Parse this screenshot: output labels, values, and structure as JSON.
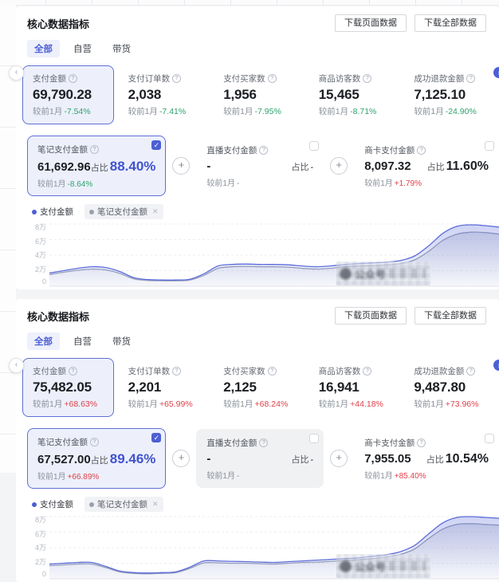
{
  "colors": {
    "accent": "#4c5fd5",
    "up_red": "#e0414b",
    "down_green": "#2ea36f",
    "line_main": "#5b6cd9",
    "line_secondary": "#99a0b8",
    "selected_card_bg": "#edf0fb"
  },
  "panels": [
    {
      "title": "核心数据指标",
      "buttons": {
        "download_page": "下载页面数据",
        "download_all": "下载全部数据"
      },
      "tabs": [
        {
          "label": "全部",
          "active": true
        },
        {
          "label": "自营",
          "active": false
        },
        {
          "label": "带货",
          "active": false
        }
      ],
      "compare_prefix": "较前1月",
      "metrics": [
        {
          "label": "支付金额",
          "value": "69,790.28",
          "change": "-7.54%",
          "dir": "down",
          "selected": true
        },
        {
          "label": "支付订单数",
          "value": "2,038",
          "change": "-7.41%",
          "dir": "down",
          "selected": false
        },
        {
          "label": "支付买家数",
          "value": "1,956",
          "change": "-7.95%",
          "dir": "down",
          "selected": false
        },
        {
          "label": "商品访客数",
          "value": "15,465",
          "change": "-8.71%",
          "dir": "down",
          "selected": false
        },
        {
          "label": "成功退款金额",
          "value": "7,125.10",
          "change": "-24.90%",
          "dir": "down",
          "selected": false
        }
      ],
      "subcards": [
        {
          "label": "笔记支付金额",
          "value": "61,692.96",
          "ratio_label": "占比",
          "ratio": "88.40%",
          "change": "-8.64%",
          "dir": "down",
          "checked": true,
          "muted": false
        },
        {
          "label": "直播支付金额",
          "value": "-",
          "ratio_label": "占比",
          "ratio": "-",
          "change": "-",
          "dir": "none",
          "checked": false,
          "muted": false
        },
        {
          "label": "商卡支付金额",
          "value": "8,097.32",
          "ratio_label": "占比",
          "ratio": "11.60%",
          "change": "+1.79%",
          "dir": "up",
          "checked": false,
          "muted": false
        }
      ],
      "legend": [
        {
          "label": "支付金额",
          "color": "#4c5fd5"
        },
        {
          "label": "笔记支付金额",
          "color": "#9aa0ab",
          "closable": true,
          "close_glyph": "✕"
        }
      ],
      "chart": {
        "type": "area",
        "y_ticks": [
          "8万",
          "6万",
          "4万",
          "2万",
          "0"
        ],
        "y_max": 8,
        "unit": "万",
        "watermark": "公众号",
        "series": [
          {
            "name": "支付金额",
            "color": "#5b6cd9",
            "values": [
              1.7,
              2.0,
              2.3,
              2.5,
              2.4,
              1.9,
              1.1,
              0.85,
              0.8,
              0.8,
              0.9,
              1.6,
              2.6,
              2.8,
              2.85,
              2.8,
              2.8,
              2.75,
              2.6,
              2.5,
              2.6,
              2.8,
              2.9,
              3.0,
              3.1,
              3.3,
              3.9,
              5.2,
              6.8,
              7.7,
              7.9,
              7.8,
              7.6
            ]
          },
          {
            "name": "笔记支付金额",
            "color": "#99a0b8",
            "values": [
              1.5,
              1.8,
              2.05,
              2.2,
              2.1,
              1.65,
              0.95,
              0.75,
              0.7,
              0.7,
              0.8,
              1.4,
              2.3,
              2.5,
              2.55,
              2.5,
              2.5,
              2.45,
              2.3,
              2.2,
              2.3,
              2.5,
              2.6,
              2.65,
              2.75,
              2.9,
              3.4,
              4.5,
              5.9,
              6.7,
              6.95,
              6.9,
              6.7
            ]
          }
        ]
      }
    },
    {
      "title": "核心数据指标",
      "buttons": {
        "download_page": "下载页面数据",
        "download_all": "下载全部数据"
      },
      "tabs": [
        {
          "label": "全部",
          "active": true
        },
        {
          "label": "自营",
          "active": false
        },
        {
          "label": "带货",
          "active": false
        }
      ],
      "compare_prefix": "较前1月",
      "metrics": [
        {
          "label": "支付金额",
          "value": "75,482.05",
          "change": "+68.63%",
          "dir": "up",
          "selected": true
        },
        {
          "label": "支付订单数",
          "value": "2,201",
          "change": "+65.99%",
          "dir": "up",
          "selected": false
        },
        {
          "label": "支付买家数",
          "value": "2,125",
          "change": "+68.24%",
          "dir": "up",
          "selected": false
        },
        {
          "label": "商品访客数",
          "value": "16,941",
          "change": "+44.18%",
          "dir": "up",
          "selected": false
        },
        {
          "label": "成功退款金额",
          "value": "9,487.80",
          "change": "+73.96%",
          "dir": "up",
          "selected": false
        }
      ],
      "subcards": [
        {
          "label": "笔记支付金额",
          "value": "67,527.00",
          "ratio_label": "占比",
          "ratio": "89.46%",
          "change": "+66.89%",
          "dir": "up",
          "checked": true,
          "muted": false
        },
        {
          "label": "直播支付金额",
          "value": "-",
          "ratio_label": "占比",
          "ratio": "-",
          "change": "-",
          "dir": "none",
          "checked": false,
          "muted": true
        },
        {
          "label": "商卡支付金额",
          "value": "7,955.05",
          "ratio_label": "占比",
          "ratio": "10.54%",
          "change": "+85.40%",
          "dir": "up",
          "checked": false,
          "muted": false
        }
      ],
      "legend": [
        {
          "label": "支付金额",
          "color": "#4c5fd5"
        },
        {
          "label": "笔记支付金额",
          "color": "#9aa0ab",
          "closable": true,
          "close_glyph": "✕"
        }
      ],
      "chart": {
        "type": "area",
        "y_ticks": [
          "8万",
          "6万",
          "4万",
          "2万",
          "0"
        ],
        "y_max": 8,
        "unit": "万",
        "watermark": "公众号",
        "series": [
          {
            "name": "支付金额",
            "color": "#5b6cd9",
            "values": [
              1.9,
              2.0,
              2.1,
              2.1,
              1.6,
              1.0,
              0.8,
              0.75,
              0.8,
              0.9,
              1.5,
              2.3,
              2.3,
              2.25,
              2.2,
              2.15,
              2.1,
              2.2,
              2.3,
              2.4,
              2.5,
              2.6,
              2.7,
              2.9,
              3.1,
              3.5,
              4.3,
              5.8,
              7.2,
              7.9,
              8.0,
              7.9,
              7.8
            ]
          },
          {
            "name": "笔记支付金额",
            "color": "#99a0b8",
            "values": [
              1.7,
              1.8,
              1.9,
              1.9,
              1.45,
              0.9,
              0.7,
              0.65,
              0.7,
              0.8,
              1.35,
              2.05,
              2.05,
              2.0,
              2.0,
              1.95,
              1.9,
              2.0,
              2.1,
              2.15,
              2.25,
              2.35,
              2.45,
              2.6,
              2.8,
              3.15,
              3.85,
              5.2,
              6.4,
              7.0,
              7.1,
              7.0,
              6.9
            ]
          }
        ]
      }
    }
  ]
}
